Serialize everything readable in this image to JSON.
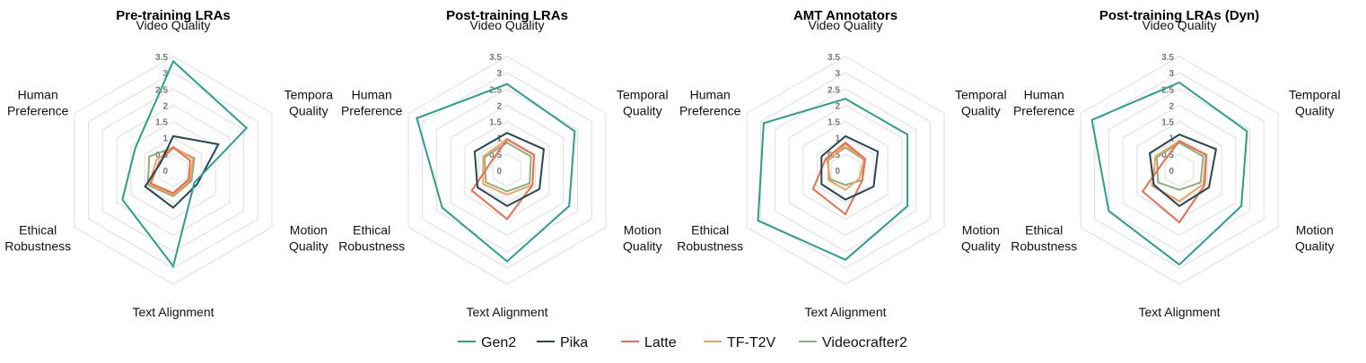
{
  "chart_data": [
    {
      "type": "radar",
      "title": "Pre-training LRAs",
      "axes": [
        "Video Quality",
        "Tempora\nQuality",
        "Motion\nQuality",
        "Text Alignment",
        "Ethical\nRobustness",
        "Human\nPreference"
      ],
      "ticks": [
        "0",
        "0.5",
        "1",
        "1.5",
        "2",
        "2.5",
        "3",
        "3.5"
      ],
      "rmax": 3.5,
      "series": [
        {
          "name": "Gen2",
          "values": [
            3.35,
            2.6,
            0.75,
            2.95,
            1.8,
            1.35
          ]
        },
        {
          "name": "Pika",
          "values": [
            1.05,
            1.6,
            0.85,
            1.15,
            1.0,
            0.45
          ]
        },
        {
          "name": "Latte",
          "values": [
            0.7,
            0.6,
            0.55,
            0.7,
            0.8,
            0.5
          ]
        },
        {
          "name": "TF-T2V",
          "values": [
            0.72,
            0.7,
            0.6,
            0.75,
            0.85,
            0.6
          ]
        },
        {
          "name": "Videocrafter2",
          "values": [
            0.7,
            0.75,
            0.65,
            0.8,
            0.9,
            0.85
          ]
        }
      ]
    },
    {
      "type": "radar",
      "title": "Post-training LRAs",
      "axes": [
        "Video Quality",
        "Temporal\nQuality",
        "Motion\nQuality",
        "Text Alignment",
        "Ethical\nRobustness",
        "Human\nPreference"
      ],
      "ticks": [
        "0",
        "0.5",
        "1",
        "1.5",
        "2",
        "2.5",
        "3",
        "3.5"
      ],
      "rmax": 3.5,
      "series": [
        {
          "name": "Gen2",
          "values": [
            2.65,
            2.4,
            2.2,
            2.8,
            2.3,
            3.2
          ]
        },
        {
          "name": "Pika",
          "values": [
            1.15,
            1.3,
            1.15,
            1.1,
            1.05,
            1.15
          ]
        },
        {
          "name": "Latte",
          "values": [
            0.95,
            0.95,
            0.9,
            1.5,
            1.25,
            0.55
          ]
        },
        {
          "name": "TF-T2V",
          "values": [
            0.95,
            0.95,
            0.9,
            0.75,
            0.85,
            0.85
          ]
        },
        {
          "name": "Videocrafter2",
          "values": [
            0.85,
            0.85,
            0.8,
            0.65,
            0.75,
            0.8
          ]
        }
      ]
    },
    {
      "type": "radar",
      "title": "AMT Annotators",
      "axes": [
        "Video Quality",
        "Temporal\nQuality",
        "Motion\nQuality",
        "Text Alignment",
        "Ethical\nRobustness",
        "Human\nPreference"
      ],
      "ticks": [
        "0",
        "0.5",
        "1",
        "1.5",
        "2",
        "2.5",
        "3",
        "3.5"
      ],
      "rmax": 3.5,
      "series": [
        {
          "name": "Gen2",
          "values": [
            2.2,
            2.2,
            2.2,
            2.75,
            3.1,
            2.9
          ]
        },
        {
          "name": "Pika",
          "values": [
            1.05,
            1.15,
            1.0,
            0.9,
            0.85,
            0.85
          ]
        },
        {
          "name": "Latte",
          "values": [
            0.85,
            0.7,
            0.6,
            1.35,
            1.15,
            0.7
          ]
        },
        {
          "name": "TF-T2V",
          "values": [
            0.8,
            0.65,
            0.5,
            0.6,
            0.6,
            0.6
          ]
        },
        {
          "name": "Videocrafter2",
          "values": [
            0.7,
            0.65,
            0.6,
            0.45,
            0.55,
            0.65
          ]
        }
      ]
    },
    {
      "type": "radar",
      "title": "Post-training LRAs (Dyn)",
      "axes": [
        "Video Quality",
        "Temporal\nQuality",
        "Motion\nQuality",
        "Text Alignment",
        "Ethical\nRobustness",
        "Human\nPreference"
      ],
      "ticks": [
        "0",
        "0.5",
        "1",
        "1.5",
        "2",
        "2.5",
        "3",
        "3.5"
      ],
      "rmax": 3.5,
      "series": [
        {
          "name": "Gen2",
          "values": [
            2.7,
            2.4,
            2.2,
            2.9,
            2.5,
            3.1
          ]
        },
        {
          "name": "Pika",
          "values": [
            1.1,
            1.3,
            1.05,
            1.1,
            0.9,
            1.05
          ]
        },
        {
          "name": "Latte",
          "values": [
            0.9,
            0.95,
            0.9,
            1.6,
            1.3,
            0.55
          ]
        },
        {
          "name": "TF-T2V",
          "values": [
            0.9,
            0.95,
            0.85,
            0.95,
            0.95,
            0.85
          ]
        },
        {
          "name": "Videocrafter2",
          "values": [
            0.85,
            0.85,
            0.75,
            0.6,
            0.75,
            0.8
          ]
        }
      ]
    }
  ],
  "legend": {
    "position": "bottom",
    "items": [
      {
        "name": "Gen2",
        "color": "#2a9d8f"
      },
      {
        "name": "Pika",
        "color": "#264653"
      },
      {
        "name": "Latte",
        "color": "#e76f51"
      },
      {
        "name": "TF-T2V",
        "color": "#f4a261"
      },
      {
        "name": "Videocrafter2",
        "color": "#8ab17d"
      }
    ]
  }
}
